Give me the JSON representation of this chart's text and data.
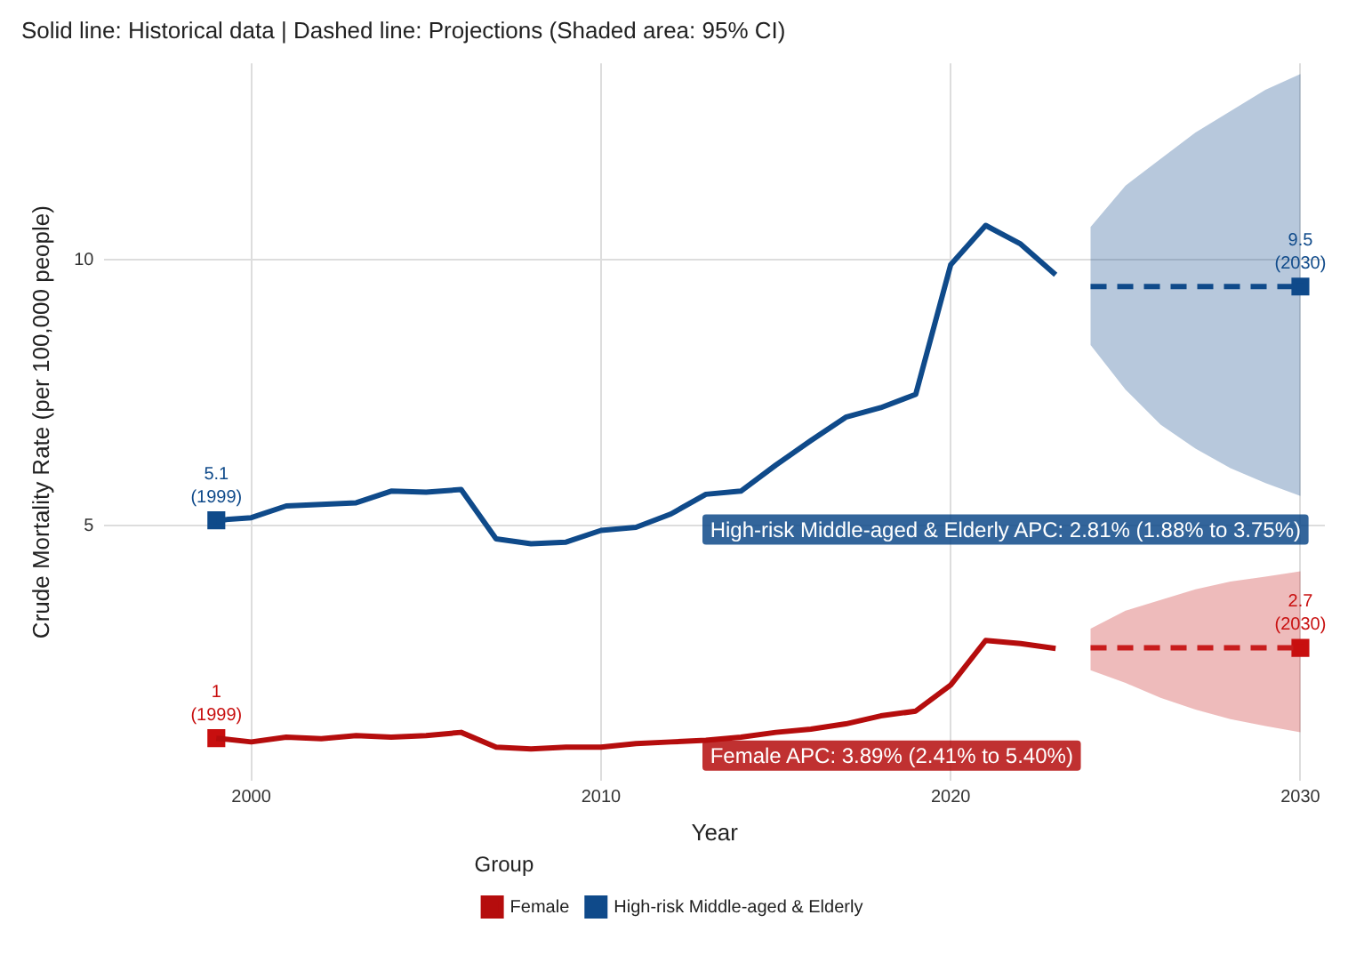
{
  "chart_data": {
    "type": "line",
    "title": "Solid line: Historical data | Dashed line: Projections (Shaded area: 95% CI)",
    "xlabel": "Year",
    "ylabel": "Crude Mortality Rate (per 100,000 people)",
    "legend_title": "Group",
    "series": [
      {
        "name": "Female",
        "color": "#b50d0d",
        "type": "line",
        "marker": "none",
        "line_style": "solid",
        "x": [
          1999,
          2000,
          2001,
          2002,
          2003,
          2004,
          2005,
          2006,
          2007,
          2008,
          2009,
          2010,
          2011,
          2012,
          2013,
          2014,
          2015,
          2016,
          2017,
          2018,
          2019,
          2020,
          2021,
          2022,
          2023
        ],
        "values": [
          1,
          0.93,
          1.02,
          0.99,
          1.05,
          1.02,
          1.05,
          1.11,
          0.83,
          0.8,
          0.83,
          0.83,
          0.9,
          0.93,
          0.96,
          1.02,
          1.11,
          1.17,
          1.27,
          1.42,
          1.51,
          2.0,
          2.84,
          2.78,
          2.69
        ]
      },
      {
        "name": "High-risk Middle-aged & Elderly",
        "color": "#0f4a8a",
        "type": "line",
        "marker": "none",
        "line_style": "solid",
        "x": [
          1999,
          2000,
          2001,
          2002,
          2003,
          2004,
          2005,
          2006,
          2007,
          2008,
          2009,
          2010,
          2011,
          2012,
          2013,
          2014,
          2015,
          2016,
          2017,
          2018,
          2019,
          2020,
          2021,
          2022,
          2023
        ],
        "values": [
          5.1,
          5.15,
          5.37,
          5.4,
          5.43,
          5.65,
          5.63,
          5.68,
          4.75,
          4.66,
          4.69,
          4.91,
          4.97,
          5.22,
          5.59,
          5.65,
          6.14,
          6.6,
          7.04,
          7.22,
          7.47,
          9.91,
          10.65,
          10.3,
          9.72
        ]
      },
      {
        "color": "#c81d1d",
        "type": "line",
        "marker": "none",
        "line_style": "dashed",
        "x": [
          2024,
          2025,
          2026,
          2027,
          2028,
          2029,
          2030
        ],
        "values": [
          2.7,
          2.7,
          2.7,
          2.7,
          2.7,
          2.7,
          2.7
        ],
        "lower": [
          2.28,
          2.04,
          1.76,
          1.54,
          1.36,
          1.23,
          1.11
        ],
        "upper": [
          3.06,
          3.4,
          3.6,
          3.8,
          3.95,
          4.04,
          4.14
        ]
      },
      {
        "color": "#0f4a8a",
        "type": "line",
        "marker": "none",
        "line_style": "dashed",
        "x": [
          2024,
          2025,
          2026,
          2027,
          2028,
          2029,
          2030
        ],
        "values": [
          9.5,
          9.5,
          9.5,
          9.5,
          9.5,
          9.5,
          9.5
        ],
        "lower": [
          8.4,
          7.56,
          6.9,
          6.45,
          6.08,
          5.8,
          5.56
        ],
        "upper": [
          10.62,
          11.4,
          11.9,
          12.4,
          12.8,
          13.2,
          13.5
        ]
      },
      {
        "color": "#c80f0f",
        "type": "scatter",
        "marker": "square",
        "x": [
          1999,
          2030
        ],
        "values": [
          1,
          2.7
        ],
        "value_labels": [
          "1\n(1999)",
          "2.7\n(2030)"
        ]
      },
      {
        "color": "#0f4a8a",
        "type": "scatter",
        "marker": "square",
        "x": [
          1999,
          2030
        ],
        "values": [
          5.1,
          9.5
        ],
        "value_labels": [
          "5.1\n(1999)",
          "9.5\n(2030)"
        ]
      }
    ],
    "annotations": [
      "Female APC: 3.89% (2.41% to 5.40%)",
      "High-risk Middle-aged & Elderly APC: 2.81% (1.88% to 3.75%)"
    ],
    "xlim": [
      1995.8,
      2030.7
    ],
    "xticks": [
      2000,
      2010,
      2020,
      2030
    ],
    "ylim": [
      0.2,
      13.7
    ],
    "yticks": [
      5,
      10
    ],
    "grid": true,
    "legend": "bottom"
  }
}
